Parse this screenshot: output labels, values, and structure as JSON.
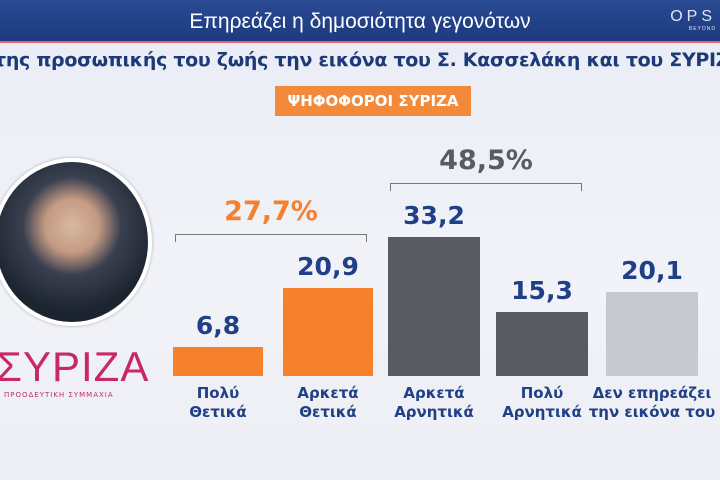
{
  "header": {
    "title": "Επηρεάζει η δημοσιότητα γεγονότων",
    "logo": "OPS",
    "logo_sub": "BEYOND"
  },
  "question": "της προσωπικής του ζωής την εικόνα του Σ. Κασσελάκη και του ΣΥΡΙΖΑ",
  "badge": "ΨΗΦΟΦΟΡΟΙ ΣΥΡΙΖΑ",
  "party_logo": {
    "name": "ΣΥΡΙΖΑ",
    "sub": "ΠΡΟΟΔΕΥΤΙΚΗ ΣΥΜΜΑΧΙΑ"
  },
  "chart_data": {
    "type": "bar",
    "title": "",
    "categories": [
      "Πολύ Θετικά",
      "Αρκετά Θετικά",
      "Αρκετά Αρνητικά",
      "Πολύ Αρνητικά",
      "Δεν επηρεάζει την εικόνα του"
    ],
    "category_lines": [
      [
        "Πολύ",
        "Θετικά"
      ],
      [
        "Αρκετά",
        "Θετικά"
      ],
      [
        "Αρκετά",
        "Αρνητικά"
      ],
      [
        "Πολύ",
        "Αρνητικά"
      ],
      [
        "Δεν επηρεάζει",
        "την εικόνα του"
      ]
    ],
    "values": [
      6.8,
      20.9,
      33.2,
      15.3,
      20.1
    ],
    "labels": [
      "6,8",
      "20,9",
      "33,2",
      "15,3",
      "20,1"
    ],
    "colors": [
      "#f6802e",
      "#f6802e",
      "#5a5b62",
      "#5a5b62",
      "#c8c9cf"
    ],
    "groups": [
      {
        "label": "27,7%",
        "color": "#f6802e",
        "from": 0,
        "to": 1
      },
      {
        "label": "48,5%",
        "color": "#5a5b62",
        "from": 2,
        "to": 3
      }
    ],
    "ylim": [
      0,
      40
    ],
    "grid": false
  }
}
